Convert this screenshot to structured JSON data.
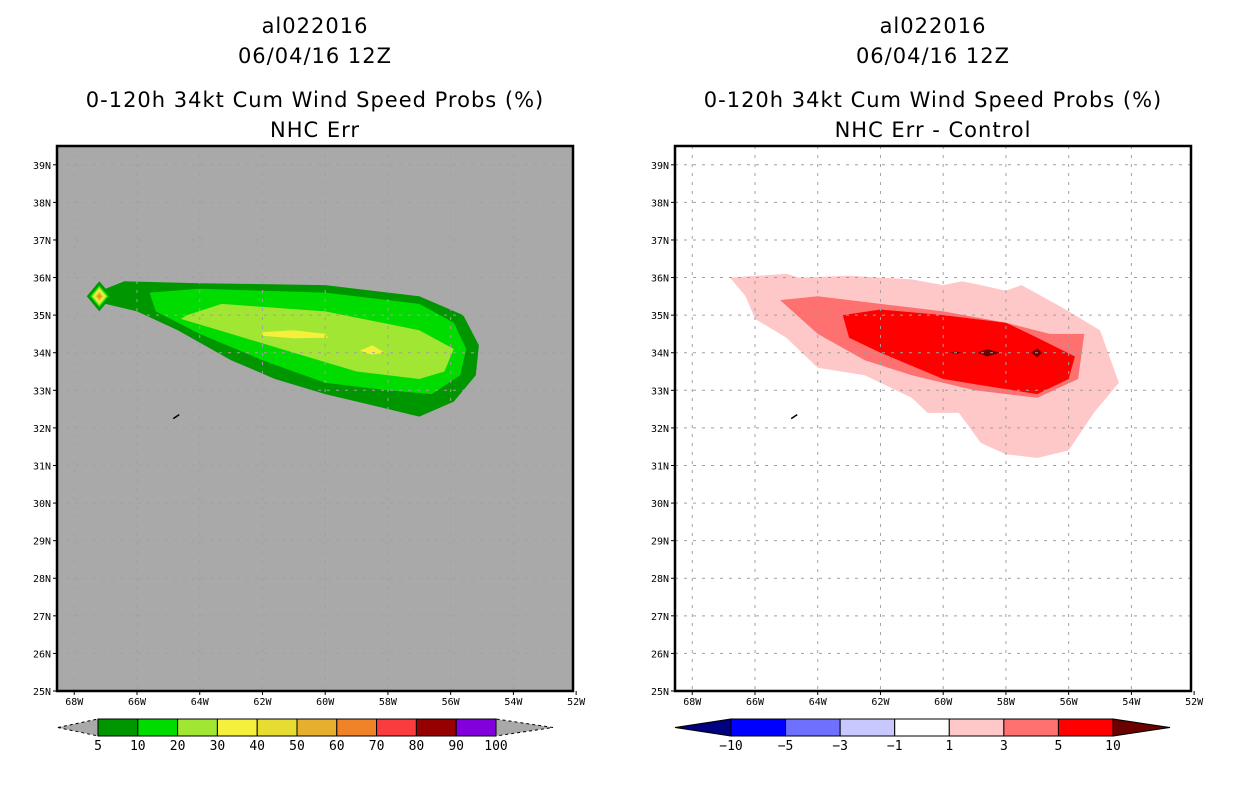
{
  "chart_data": [
    {
      "type": "heatmap",
      "panel": "left",
      "storm_id": "al022016",
      "datetime": "06/04/16 12Z",
      "title": "0-120h 34kt Cum Wind Speed Probs (%)",
      "subtitle": "NHC Err",
      "xlabel": "",
      "ylabel": "",
      "xlim": [
        -68.55,
        -52.1
      ],
      "ylim": [
        25,
        39.5
      ],
      "x_ticks": [
        "68W",
        "66W",
        "64W",
        "62W",
        "60W",
        "58W",
        "56W",
        "54W",
        "52W"
      ],
      "x_tick_values": [
        -68,
        -66,
        -64,
        -62,
        -60,
        -58,
        -56,
        -54,
        -52
      ],
      "y_ticks": [
        "25N",
        "26N",
        "27N",
        "28N",
        "29N",
        "30N",
        "31N",
        "32N",
        "33N",
        "34N",
        "35N",
        "36N",
        "37N",
        "38N",
        "39N"
      ],
      "y_tick_values": [
        25,
        26,
        27,
        28,
        29,
        30,
        31,
        32,
        33,
        34,
        35,
        36,
        37,
        38,
        39
      ],
      "grid": true,
      "background": "#a9a9a9",
      "colorbar": {
        "levels": [
          5,
          10,
          20,
          30,
          40,
          50,
          60,
          70,
          80,
          90,
          100
        ],
        "labels": [
          "5",
          "10",
          "20",
          "30",
          "40",
          "50",
          "60",
          "70",
          "80",
          "90",
          "100"
        ],
        "colors": [
          "#009600",
          "#00dc00",
          "#a0e632",
          "#f5f03c",
          "#e6dc32",
          "#e6af2d",
          "#f08228",
          "#fa3c3c",
          "#960000",
          "#8200dc"
        ],
        "under_color": "#a9a9a9",
        "over_color": "#a9a9a9"
      },
      "contours": [
        {
          "level": 5,
          "color": "#009600",
          "polygon": [
            [
              -67.0,
              35.7
            ],
            [
              -66.4,
              35.9
            ],
            [
              -64.0,
              35.85
            ],
            [
              -60.0,
              35.8
            ],
            [
              -57.0,
              35.5
            ],
            [
              -55.6,
              35.0
            ],
            [
              -55.1,
              34.2
            ],
            [
              -55.2,
              33.4
            ],
            [
              -55.9,
              32.7
            ],
            [
              -57.0,
              32.3
            ],
            [
              -58.5,
              32.6
            ],
            [
              -60.0,
              32.9
            ],
            [
              -61.6,
              33.3
            ],
            [
              -63.0,
              33.8
            ],
            [
              -64.7,
              34.6
            ],
            [
              -66.0,
              35.1
            ],
            [
              -67.0,
              35.3
            ]
          ]
        },
        {
          "level": 10,
          "color": "#00dc00",
          "polygon": [
            [
              -65.6,
              35.6
            ],
            [
              -64.0,
              35.7
            ],
            [
              -60.0,
              35.6
            ],
            [
              -57.0,
              35.3
            ],
            [
              -55.9,
              34.8
            ],
            [
              -55.5,
              34.1
            ],
            [
              -55.7,
              33.4
            ],
            [
              -56.6,
              32.9
            ],
            [
              -58.0,
              33.0
            ],
            [
              -60.0,
              33.2
            ],
            [
              -62.0,
              33.8
            ],
            [
              -64.0,
              34.5
            ],
            [
              -65.4,
              35.1
            ]
          ]
        },
        {
          "level": 20,
          "color": "#a0e632",
          "polygon": [
            [
              -64.4,
              35.0
            ],
            [
              -63.3,
              35.3
            ],
            [
              -60.0,
              35.1
            ],
            [
              -57.0,
              34.6
            ],
            [
              -55.9,
              34.1
            ],
            [
              -56.2,
              33.5
            ],
            [
              -57.0,
              33.3
            ],
            [
              -59.0,
              33.5
            ],
            [
              -61.0,
              34.0
            ],
            [
              -63.0,
              34.5
            ],
            [
              -64.6,
              34.9
            ]
          ]
        },
        {
          "level": 30,
          "color": "#f5f03c",
          "polygon": [
            [
              -62.0,
              34.55
            ],
            [
              -61.0,
              34.6
            ],
            [
              -60.0,
              34.5
            ],
            [
              -59.9,
              34.4
            ],
            [
              -61.0,
              34.38
            ],
            [
              -62.0,
              34.45
            ]
          ]
        },
        {
          "level": 30,
          "color": "#f5f03c",
          "polygon": [
            [
              -58.9,
              34.05
            ],
            [
              -58.5,
              34.2
            ],
            [
              -58.1,
              34.0
            ],
            [
              -58.5,
              33.95
            ]
          ]
        },
        {
          "level": 5,
          "color": "#009600",
          "polygon": [
            [
              -67.6,
              35.5
            ],
            [
              -67.2,
              35.9
            ],
            [
              -66.8,
              35.5
            ],
            [
              -67.2,
              35.1
            ]
          ]
        },
        {
          "level": 10,
          "color": "#00dc00",
          "polygon": [
            [
              -67.5,
              35.5
            ],
            [
              -67.2,
              35.8
            ],
            [
              -66.9,
              35.5
            ],
            [
              -67.2,
              35.2
            ]
          ]
        },
        {
          "level": 20,
          "color": "#a0e632",
          "polygon": [
            [
              -67.45,
              35.5
            ],
            [
              -67.2,
              35.75
            ],
            [
              -66.95,
              35.5
            ],
            [
              -67.2,
              35.25
            ]
          ]
        },
        {
          "level": 30,
          "color": "#f5f03c",
          "polygon": [
            [
              -67.4,
              35.5
            ],
            [
              -67.2,
              35.7
            ],
            [
              -67.0,
              35.5
            ],
            [
              -67.2,
              35.3
            ]
          ]
        },
        {
          "level": 40,
          "color": "#e6dc32",
          "polygon": [
            [
              -67.35,
              35.5
            ],
            [
              -67.2,
              35.65
            ],
            [
              -67.05,
              35.5
            ],
            [
              -67.2,
              35.35
            ]
          ]
        },
        {
          "level": 50,
          "color": "#e6af2d",
          "polygon": [
            [
              -67.3,
              35.5
            ],
            [
              -67.2,
              35.6
            ],
            [
              -67.1,
              35.5
            ],
            [
              -67.2,
              35.4
            ]
          ]
        },
        {
          "level": 60,
          "color": "#f08228",
          "polygon": [
            [
              -67.25,
              35.5
            ],
            [
              -67.2,
              35.55
            ],
            [
              -67.15,
              35.5
            ],
            [
              -67.2,
              35.45
            ]
          ]
        }
      ]
    },
    {
      "type": "heatmap",
      "panel": "right",
      "storm_id": "al022016",
      "datetime": "06/04/16 12Z",
      "title": "0-120h 34kt Cum Wind Speed Probs (%)",
      "subtitle": "NHC Err - Control",
      "xlabel": "",
      "ylabel": "",
      "xlim": [
        -68.55,
        -52.1
      ],
      "ylim": [
        25,
        39.5
      ],
      "x_ticks": [
        "68W",
        "66W",
        "64W",
        "62W",
        "60W",
        "58W",
        "56W",
        "54W",
        "52W"
      ],
      "x_tick_values": [
        -68,
        -66,
        -64,
        -62,
        -60,
        -58,
        -56,
        -54,
        -52
      ],
      "y_ticks": [
        "25N",
        "26N",
        "27N",
        "28N",
        "29N",
        "30N",
        "31N",
        "32N",
        "33N",
        "34N",
        "35N",
        "36N",
        "37N",
        "38N",
        "39N"
      ],
      "y_tick_values": [
        25,
        26,
        27,
        28,
        29,
        30,
        31,
        32,
        33,
        34,
        35,
        36,
        37,
        38,
        39
      ],
      "grid": true,
      "background": "#ffffff",
      "colorbar": {
        "levels": [
          -10,
          -5,
          -3,
          -1,
          1,
          3,
          5,
          10
        ],
        "labels": [
          "-10",
          "-5",
          "-3",
          "-1",
          "1",
          "3",
          "5",
          "10"
        ],
        "colors": [
          "#0000ff",
          "#7070ff",
          "#c8c8ff",
          "#ffffff",
          "#ffc8c8",
          "#ff7070",
          "#ff0000"
        ],
        "under_color": "#000080",
        "over_color": "#6b0000"
      },
      "contours": [
        {
          "level": 1,
          "color": "#ffc8c8",
          "polygon": [
            [
              -66.8,
              36.0
            ],
            [
              -65.0,
              36.1
            ],
            [
              -64.6,
              36.0
            ],
            [
              -63.0,
              36.05
            ],
            [
              -61.0,
              35.95
            ],
            [
              -60.0,
              35.8
            ],
            [
              -59.4,
              35.9
            ],
            [
              -58.8,
              35.8
            ],
            [
              -58.0,
              35.65
            ],
            [
              -57.5,
              35.8
            ],
            [
              -56.2,
              35.2
            ],
            [
              -55.0,
              34.6
            ],
            [
              -54.4,
              33.2
            ],
            [
              -55.2,
              32.4
            ],
            [
              -56.0,
              31.4
            ],
            [
              -57.0,
              31.2
            ],
            [
              -58.0,
              31.3
            ],
            [
              -58.8,
              31.6
            ],
            [
              -59.5,
              32.4
            ],
            [
              -60.5,
              32.4
            ],
            [
              -61.0,
              32.8
            ],
            [
              -62.5,
              33.4
            ],
            [
              -64.0,
              33.6
            ],
            [
              -65.0,
              34.4
            ],
            [
              -66.0,
              34.9
            ],
            [
              -66.3,
              35.5
            ]
          ]
        },
        {
          "level": 3,
          "color": "#ff7070",
          "polygon": [
            [
              -65.2,
              35.4
            ],
            [
              -64.0,
              35.5
            ],
            [
              -62.0,
              35.3
            ],
            [
              -60.0,
              35.1
            ],
            [
              -58.0,
              34.8
            ],
            [
              -56.6,
              34.5
            ],
            [
              -55.5,
              34.5
            ],
            [
              -55.7,
              33.3
            ],
            [
              -57.0,
              32.8
            ],
            [
              -59.0,
              33.0
            ],
            [
              -61.0,
              33.4
            ],
            [
              -62.5,
              33.8
            ],
            [
              -64.0,
              34.5
            ]
          ]
        },
        {
          "level": 5,
          "color": "#ff0000",
          "polygon": [
            [
              -63.2,
              35.0
            ],
            [
              -62.0,
              35.15
            ],
            [
              -60.0,
              35.0
            ],
            [
              -58.0,
              34.8
            ],
            [
              -57.0,
              34.4
            ],
            [
              -55.8,
              33.9
            ],
            [
              -56.0,
              33.3
            ],
            [
              -57.0,
              32.9
            ],
            [
              -58.5,
              33.1
            ],
            [
              -60.0,
              33.3
            ],
            [
              -62.0,
              34.0
            ],
            [
              -63.0,
              34.4
            ]
          ]
        },
        {
          "level": 10,
          "color": "#6b0000",
          "polygon": [
            [
              -59.8,
              34.0
            ],
            [
              -59.6,
              34.03
            ],
            [
              -59.4,
              34.0
            ],
            [
              -59.6,
              33.97
            ]
          ]
        },
        {
          "level": 10,
          "color": "#6b0000",
          "polygon": [
            [
              -58.9,
              34.0
            ],
            [
              -58.6,
              34.1
            ],
            [
              -58.2,
              34.0
            ],
            [
              -58.6,
              33.9
            ]
          ]
        },
        {
          "level": 10,
          "color": "#6b0000",
          "polygon": [
            [
              -57.2,
              34.0
            ],
            [
              -57.0,
              34.12
            ],
            [
              -56.85,
              34.0
            ],
            [
              -57.0,
              33.88
            ]
          ]
        }
      ]
    }
  ]
}
